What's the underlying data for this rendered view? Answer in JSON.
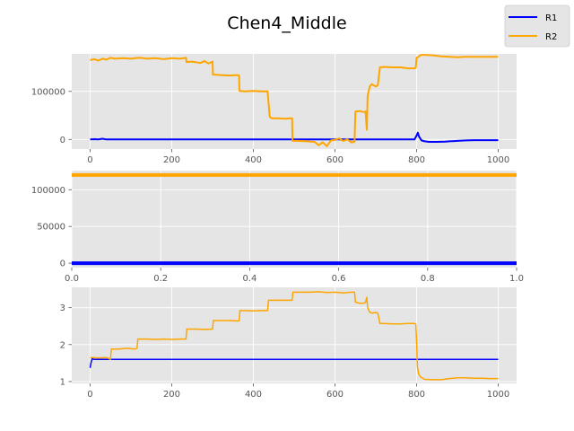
{
  "title": "Chen4_Middle",
  "legend": {
    "placement": "top-right",
    "entries": [
      {
        "label": "R1",
        "color": "#0000ff"
      },
      {
        "label": "R2",
        "color": "#ffa500"
      }
    ]
  },
  "colors": {
    "R1": "#0000ff",
    "R2": "#ffa500",
    "background": "#e5e5e5",
    "grid": "#ffffff"
  },
  "chart_data": [
    {
      "type": "line",
      "title": "",
      "xlabel": "",
      "ylabel": "",
      "xlim": [
        -45,
        1045
      ],
      "ylim": [
        -20000,
        178000
      ],
      "grid": true,
      "xticks": [
        0,
        200,
        400,
        600,
        800,
        1000
      ],
      "xtick_labels": [
        "0",
        "200",
        "400",
        "600",
        "800",
        "1000"
      ],
      "yticks": [
        0,
        100000
      ],
      "ytick_labels": [
        "0",
        "100000"
      ],
      "series": [
        {
          "name": "R1",
          "color": "#0000ff",
          "x": [
            0,
            10,
            20,
            30,
            40,
            100,
            200,
            300,
            400,
            500,
            600,
            700,
            795,
            800,
            803,
            806,
            812,
            820,
            830,
            850,
            870,
            880,
            900,
            920,
            940,
            960,
            980,
            1000
          ],
          "y": [
            0,
            500,
            0,
            1500,
            0,
            0,
            0,
            0,
            0,
            0,
            0,
            0,
            0,
            8000,
            14000,
            6000,
            -2000,
            -4000,
            -5000,
            -5000,
            -4500,
            -4000,
            -3000,
            -2000,
            -1500,
            -1500,
            -1500,
            -1500
          ]
        },
        {
          "name": "R2",
          "color": "#ffa500",
          "x": [
            0,
            10,
            20,
            30,
            40,
            50,
            60,
            80,
            100,
            120,
            140,
            160,
            180,
            200,
            220,
            235,
            236,
            250,
            270,
            280,
            290,
            300,
            301,
            320,
            340,
            360,
            365,
            366,
            380,
            400,
            420,
            435,
            440,
            445,
            460,
            480,
            490,
            495,
            496,
            510,
            530,
            550,
            560,
            570,
            580,
            590,
            600,
            610,
            620,
            630,
            640,
            648,
            650,
            660,
            670,
            675,
            678,
            680,
            685,
            690,
            700,
            705,
            710,
            720,
            740,
            760,
            780,
            795,
            798,
            800,
            805,
            810,
            820,
            840,
            860,
            880,
            900,
            920,
            940,
            960,
            980,
            1000
          ],
          "y": [
            165000,
            167000,
            164000,
            168000,
            166000,
            170000,
            168000,
            169000,
            168000,
            170000,
            168000,
            169000,
            167000,
            169000,
            168000,
            170000,
            161000,
            162000,
            159000,
            163000,
            158000,
            162000,
            135000,
            134000,
            133000,
            134000,
            133000,
            101000,
            100000,
            101000,
            100000,
            100000,
            47000,
            44000,
            44000,
            43000,
            44000,
            44000,
            -3000,
            -3000,
            -4000,
            -5000,
            -12000,
            -6000,
            -14000,
            -2000,
            -1000,
            2000,
            -3000,
            0,
            -6000,
            -5000,
            58000,
            59000,
            57000,
            58000,
            20000,
            90000,
            110000,
            115000,
            110000,
            113000,
            150000,
            151000,
            150000,
            150000,
            148000,
            148000,
            149000,
            170000,
            172000,
            176000,
            176000,
            175000,
            173000,
            172000,
            171000,
            172000,
            172000,
            172000,
            172000,
            172000
          ]
        }
      ]
    },
    {
      "type": "line",
      "title": "",
      "xlabel": "",
      "ylabel": "",
      "xlim": [
        0,
        1
      ],
      "ylim": [
        -6000,
        126000
      ],
      "grid": true,
      "xticks": [
        0,
        0.2,
        0.4,
        0.6,
        0.8,
        1.0
      ],
      "xtick_labels": [
        "0.0",
        "0.2",
        "0.4",
        "0.6",
        "0.8",
        "1.0"
      ],
      "yticks": [
        0,
        50000,
        100000
      ],
      "ytick_labels": [
        "0",
        "50000",
        "100000"
      ],
      "series": [
        {
          "name": "R1",
          "color": "#0000ff",
          "x": [
            0,
            1
          ],
          "y": [
            0,
            0
          ]
        },
        {
          "name": "R2",
          "color": "#ffa500",
          "x": [
            0,
            1
          ],
          "y": [
            120000,
            120000
          ]
        }
      ]
    },
    {
      "type": "line",
      "title": "",
      "xlabel": "",
      "ylabel": "",
      "xlim": [
        -45,
        1045
      ],
      "ylim": [
        0.95,
        3.55
      ],
      "grid": true,
      "xticks": [
        0,
        200,
        400,
        600,
        800,
        1000
      ],
      "xtick_labels": [
        "0",
        "200",
        "400",
        "600",
        "800",
        "1000"
      ],
      "yticks": [
        1,
        2,
        3
      ],
      "ytick_labels": [
        "1",
        "2",
        "3"
      ],
      "series": [
        {
          "name": "R1",
          "color": "#0000ff",
          "x": [
            0,
            2,
            5,
            10,
            1000
          ],
          "y": [
            1.37,
            1.5,
            1.62,
            1.6,
            1.6
          ]
        },
        {
          "name": "R2",
          "color": "#ffa500",
          "x": [
            0,
            5,
            20,
            40,
            50,
            52,
            70,
            90,
            110,
            115,
            117,
            140,
            160,
            180,
            200,
            220,
            235,
            237,
            260,
            280,
            300,
            302,
            320,
            340,
            360,
            365,
            367,
            380,
            400,
            420,
            435,
            437,
            460,
            480,
            490,
            495,
            497,
            520,
            540,
            560,
            580,
            600,
            620,
            640,
            648,
            650,
            660,
            670,
            675,
            678,
            680,
            685,
            690,
            700,
            705,
            710,
            720,
            740,
            760,
            780,
            795,
            798,
            800,
            802,
            805,
            810,
            820,
            840,
            860,
            880,
            900,
            920,
            940,
            960,
            980,
            1000
          ],
          "y": [
            1.65,
            1.65,
            1.64,
            1.65,
            1.6,
            1.88,
            1.88,
            1.9,
            1.88,
            1.9,
            2.15,
            2.15,
            2.14,
            2.15,
            2.14,
            2.15,
            2.15,
            2.42,
            2.42,
            2.41,
            2.42,
            2.65,
            2.65,
            2.65,
            2.64,
            2.64,
            2.92,
            2.92,
            2.91,
            2.92,
            2.92,
            3.2,
            3.2,
            3.2,
            3.2,
            3.2,
            3.42,
            3.42,
            3.42,
            3.43,
            3.41,
            3.42,
            3.4,
            3.42,
            3.42,
            3.15,
            3.12,
            3.12,
            3.15,
            3.28,
            3.0,
            2.88,
            2.85,
            2.87,
            2.85,
            2.57,
            2.57,
            2.56,
            2.56,
            2.57,
            2.57,
            2.55,
            2.1,
            1.4,
            1.2,
            1.12,
            1.06,
            1.05,
            1.05,
            1.08,
            1.1,
            1.1,
            1.09,
            1.09,
            1.08,
            1.08
          ]
        }
      ]
    }
  ]
}
